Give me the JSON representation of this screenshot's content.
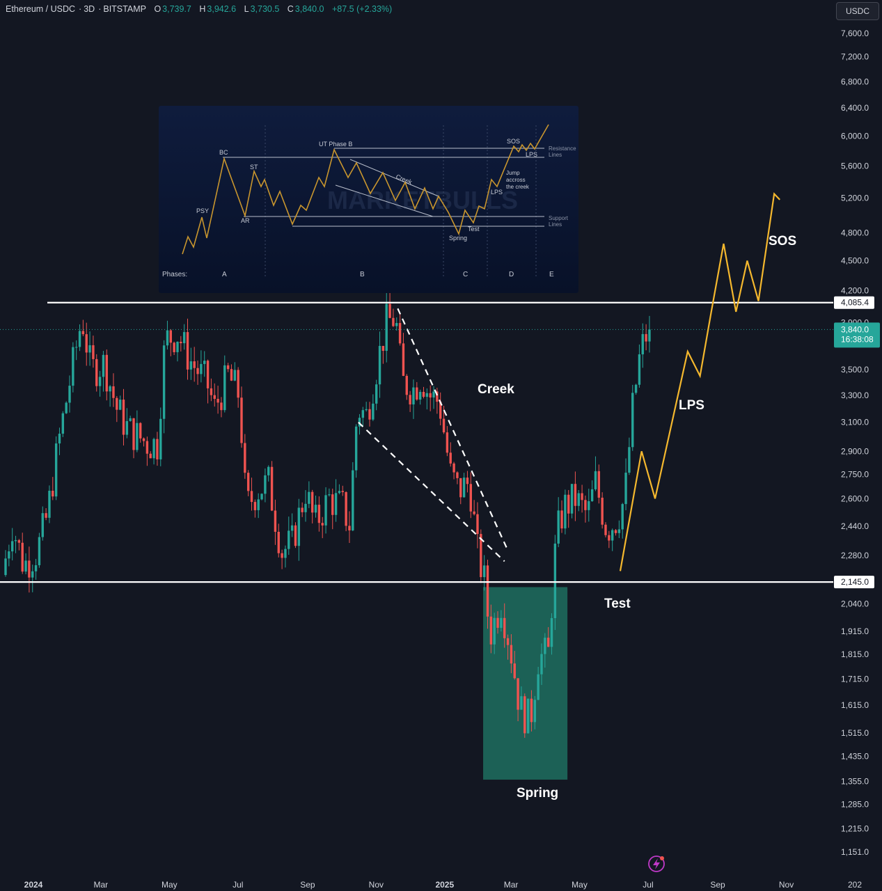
{
  "header": {
    "symbol": "Ethereum / USDC",
    "interval": "3D",
    "exchange": "BITSTAMP",
    "o_label": "O",
    "o_value": "3,739.7",
    "h_label": "H",
    "h_value": "3,942.6",
    "l_label": "L",
    "l_value": "3,730.5",
    "c_label": "C",
    "c_value": "3,840.0",
    "change": "+87.5 (+2.33%)"
  },
  "currency_button": "USDC",
  "colors": {
    "background": "#131722",
    "bull": "#26a69a",
    "bear": "#ef5350",
    "level_line": "#ffffff",
    "projection": "#f5b82e",
    "spring_zone": "#1f6e5f",
    "inset_bg": "#0b1530"
  },
  "chart_data": {
    "type": "candlestick",
    "log_scale": true,
    "ylim": [
      1130,
      7850
    ],
    "y_ticks": [
      "7,600.0",
      "7,200.0",
      "6,800.0",
      "6,400.0",
      "6,000.0",
      "5,600.0",
      "5,200.0",
      "4,800.0",
      "4,500.0",
      "4,200.0",
      "3,900.0",
      "3,500.0",
      "3,300.0",
      "3,100.0",
      "2,900.0",
      "2,750.0",
      "2,600.0",
      "2,440.0",
      "2,280.0",
      "2,040.0",
      "1,915.0",
      "1,815.0",
      "1,715.0",
      "1,615.0",
      "1,515.0",
      "1,435.0",
      "1,355.0",
      "1,285.0",
      "1,215.0",
      "1,151.0"
    ],
    "x_ticks": [
      "2024",
      "Mar",
      "May",
      "Jul",
      "Sep",
      "Nov",
      "2025",
      "Mar",
      "May",
      "Jul",
      "Sep",
      "Nov",
      "202"
    ],
    "levels": [
      {
        "label": "4,085.4",
        "value": 4085.4
      },
      {
        "label": "2,145.0",
        "value": 2145.0
      }
    ],
    "current_price": {
      "label": "3,840.0",
      "countdown": "16:38:08",
      "value": 3840.0
    },
    "price_path": [
      [
        "2024-01-01",
        2180
      ],
      [
        "2024-01-10",
        2450
      ],
      [
        "2024-01-20",
        2230
      ],
      [
        "2024-02-01",
        2300
      ],
      [
        "2024-02-10",
        2500
      ],
      [
        "2024-02-20",
        2950
      ],
      [
        "2024-03-01",
        3400
      ],
      [
        "2024-03-12",
        3950
      ],
      [
        "2024-03-20",
        3500
      ],
      [
        "2024-04-01",
        3550
      ],
      [
        "2024-04-12",
        3200
      ],
      [
        "2024-04-22",
        3050
      ],
      [
        "2024-05-01",
        3000
      ],
      [
        "2024-05-10",
        2950
      ],
      [
        "2024-05-18",
        2950
      ],
      [
        "2024-05-25",
        3750
      ],
      [
        "2024-06-05",
        3800
      ],
      [
        "2024-06-18",
        3550
      ],
      [
        "2024-07-01",
        3400
      ],
      [
        "2024-07-08",
        3200
      ],
      [
        "2024-07-20",
        3450
      ],
      [
        "2024-07-30",
        3300
      ],
      [
        "2024-08-05",
        2550
      ],
      [
        "2024-08-15",
        2650
      ],
      [
        "2024-08-25",
        2700
      ],
      [
        "2024-09-06",
        2300
      ],
      [
        "2024-09-15",
        2350
      ],
      [
        "2024-09-27",
        2650
      ],
      [
        "2024-10-05",
        2450
      ],
      [
        "2024-10-18",
        2600
      ],
      [
        "2024-10-30",
        2550
      ],
      [
        "2024-11-05",
        2450
      ],
      [
        "2024-11-12",
        3200
      ],
      [
        "2024-11-20",
        3150
      ],
      [
        "2024-12-01",
        3600
      ],
      [
        "2024-12-08",
        3900
      ],
      [
        "2024-12-16",
        3950
      ],
      [
        "2024-12-22",
        3400
      ],
      [
        "2025-01-01",
        3350
      ],
      [
        "2025-01-08",
        3450
      ],
      [
        "2025-01-15",
        3300
      ],
      [
        "2025-01-24",
        3250
      ],
      [
        "2025-02-03",
        2750
      ],
      [
        "2025-02-10",
        2650
      ],
      [
        "2025-02-20",
        2700
      ],
      [
        "2025-02-27",
        2300
      ],
      [
        "2025-03-05",
        2150
      ],
      [
        "2025-03-10",
        1900
      ],
      [
        "2025-03-20",
        2050
      ],
      [
        "2025-03-28",
        1850
      ],
      [
        "2025-04-06",
        1600
      ],
      [
        "2025-04-15",
        1560
      ],
      [
        "2025-04-22",
        1800
      ],
      [
        "2025-05-01",
        1820
      ],
      [
        "2025-05-08",
        2380
      ],
      [
        "2025-05-15",
        2550
      ],
      [
        "2025-05-25",
        2600
      ],
      [
        "2025-06-05",
        2500
      ],
      [
        "2025-06-12",
        2700
      ],
      [
        "2025-06-22",
        2420
      ],
      [
        "2025-07-01",
        2480
      ],
      [
        "2025-07-08",
        2600
      ],
      [
        "2025-07-15",
        3200
      ],
      [
        "2025-07-22",
        3650
      ],
      [
        "2025-07-29",
        3840
      ]
    ],
    "projection": [
      [
        "2025-07-01",
        2200
      ],
      [
        "2025-07-20",
        2900
      ],
      [
        "2025-08-01",
        2600
      ],
      [
        "2025-08-30",
        3650
      ],
      [
        "2025-09-10",
        3450
      ],
      [
        "2025-09-20",
        4000
      ],
      [
        "2025-10-01",
        4680
      ],
      [
        "2025-10-12",
        4000
      ],
      [
        "2025-10-22",
        4500
      ],
      [
        "2025-11-01",
        4100
      ],
      [
        "2025-11-15",
        5250
      ],
      [
        "2025-11-20",
        5180
      ]
    ],
    "creek_lines": [
      [
        [
          "2024-12-15",
          4030
        ],
        [
          "2025-03-22",
          2320
        ]
      ],
      [
        [
          "2024-11-10",
          3100
        ],
        [
          "2025-03-20",
          2250
        ]
      ]
    ],
    "spring_zone": {
      "x0": "2025-03-01",
      "x1": "2025-05-15",
      "y0": 1360,
      "y1": 2120
    },
    "annotations": [
      {
        "text": "Creek"
      },
      {
        "text": "LPS"
      },
      {
        "text": "SOS"
      },
      {
        "text": "Test"
      },
      {
        "text": "Spring"
      }
    ]
  },
  "inset": {
    "labels": {
      "psy": "PSY",
      "bc": "BC",
      "st": "ST",
      "ar": "AR",
      "ut": "UT Phase B",
      "creek": "Creek",
      "sos": "SOS",
      "lps_top": "LPS",
      "lps_mid": "LPS",
      "jump1": "Jump",
      "jump2": "accross",
      "jump3": "the creek",
      "spring": "Spring",
      "test": "Test",
      "res1": "Resistance",
      "res2": "Lines",
      "sup1": "Support",
      "sup2": "Lines",
      "watermark": "MARKETBULLS"
    },
    "phases": {
      "title": "Phases:",
      "a": "A",
      "b": "B",
      "c": "C",
      "d": "D",
      "e": "E"
    }
  }
}
